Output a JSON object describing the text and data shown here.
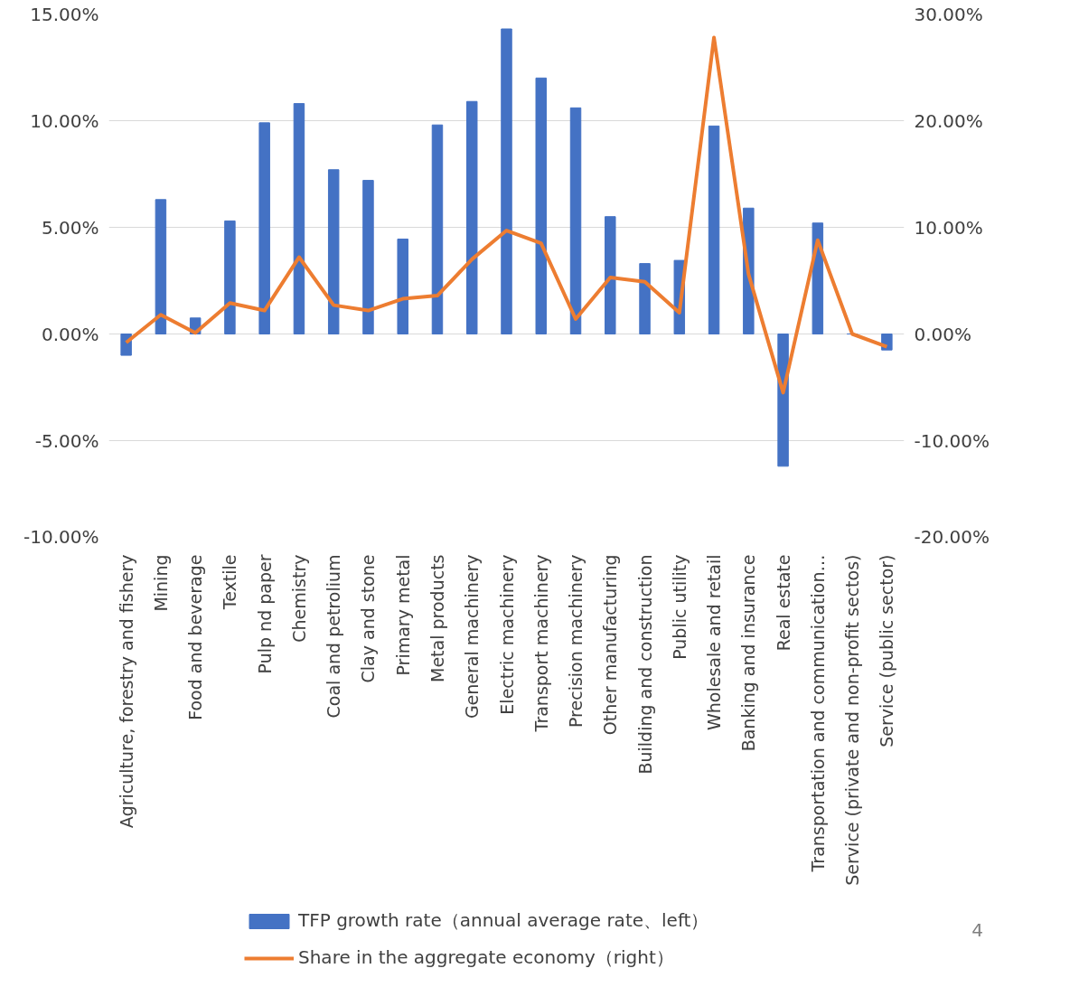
{
  "chart_data": {
    "type": "bar",
    "categories": [
      "Agriculture, forestry and fishery",
      "Mining",
      "Food and beverage",
      "Textile",
      "Pulp nd paper",
      "Chemistry",
      "Coal and petrolium",
      "Clay and stone",
      "Primary metal",
      "Metal products",
      "General machinery",
      "Electric machinery",
      "Transport machinery",
      "Precision machinery",
      "Other manufacturing",
      "Building and construction",
      "Public utility",
      "Wholesale and retail",
      "Banking and insurance",
      "Real estate",
      "Transportation and communication…",
      "Service (private and non-profit sectos)",
      "Service (public sector)"
    ],
    "series": [
      {
        "name": "TFP growth rate（annual average rate、left）",
        "color": "#4472c4",
        "values": [
          -1.0,
          6.3,
          0.75,
          5.3,
          9.9,
          10.8,
          7.7,
          7.2,
          4.45,
          9.8,
          10.9,
          14.3,
          12.0,
          10.6,
          5.5,
          3.3,
          3.45,
          9.75,
          5.9,
          -6.2,
          5.2,
          0.0,
          -0.75
        ]
      },
      {
        "name": "Share in the aggregate economy（right）",
        "type": "line",
        "axis": "y2",
        "color": "#ed7d31",
        "values": [
          -0.8,
          1.8,
          0.1,
          2.9,
          2.2,
          7.2,
          2.7,
          2.2,
          3.3,
          3.6,
          7.0,
          9.7,
          8.5,
          1.4,
          5.3,
          4.9,
          2.0,
          27.8,
          5.6,
          -5.5,
          8.8,
          0.0,
          -1.2
        ]
      }
    ],
    "ylim": [
      -10,
      15
    ],
    "yticks": [
      {
        "value": -10,
        "label": "-10.00%"
      },
      {
        "value": -5,
        "label": "-5.00%"
      },
      {
        "value": 0,
        "label": "0.00%"
      },
      {
        "value": 5,
        "label": "5.00%"
      },
      {
        "value": 10,
        "label": "10.00%"
      },
      {
        "value": 15,
        "label": "15.00%"
      }
    ],
    "y2lim": [
      -20,
      30
    ],
    "y2ticks": [
      {
        "value": -20,
        "label": "-20.00%"
      },
      {
        "value": -10,
        "label": "-10.00%"
      },
      {
        "value": 0,
        "label": "0.00%"
      },
      {
        "value": 10,
        "label": "10.00%"
      },
      {
        "value": 20,
        "label": "20.00%"
      },
      {
        "value": 30,
        "label": "30.00%"
      }
    ],
    "grid": "y",
    "legend": "bottom",
    "annotations": [
      "4"
    ]
  }
}
